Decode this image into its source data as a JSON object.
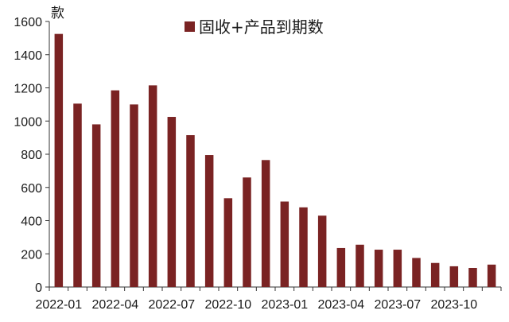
{
  "chart_data": {
    "type": "bar",
    "title": "",
    "xlabel": "",
    "ylabel": "款",
    "ylim": [
      0,
      1600
    ],
    "yticks": [
      0,
      200,
      400,
      600,
      800,
      1000,
      1200,
      1400,
      1600
    ],
    "grid": false,
    "legend": {
      "placement": "top-center"
    },
    "bar_color": "#7a2323",
    "categories": [
      "2022-01",
      "2022-02",
      "2022-03",
      "2022-04",
      "2022-05",
      "2022-06",
      "2022-07",
      "2022-08",
      "2022-09",
      "2022-10",
      "2022-11",
      "2022-12",
      "2023-01",
      "2023-02",
      "2023-03",
      "2023-04",
      "2023-05",
      "2023-06",
      "2023-07",
      "2023-08",
      "2023-09",
      "2023-10",
      "2023-11",
      "2023-12"
    ],
    "xtick_labels": [
      "2022-01",
      "2022-04",
      "2022-07",
      "2022-10",
      "2023-01",
      "2023-04",
      "2023-07",
      "2023-10"
    ],
    "series": [
      {
        "name": "固收+产品到期数",
        "values": [
          1525,
          1105,
          980,
          1185,
          1100,
          1215,
          1025,
          915,
          795,
          535,
          660,
          765,
          515,
          480,
          430,
          235,
          255,
          225,
          225,
          175,
          145,
          125,
          115,
          135
        ]
      }
    ]
  }
}
